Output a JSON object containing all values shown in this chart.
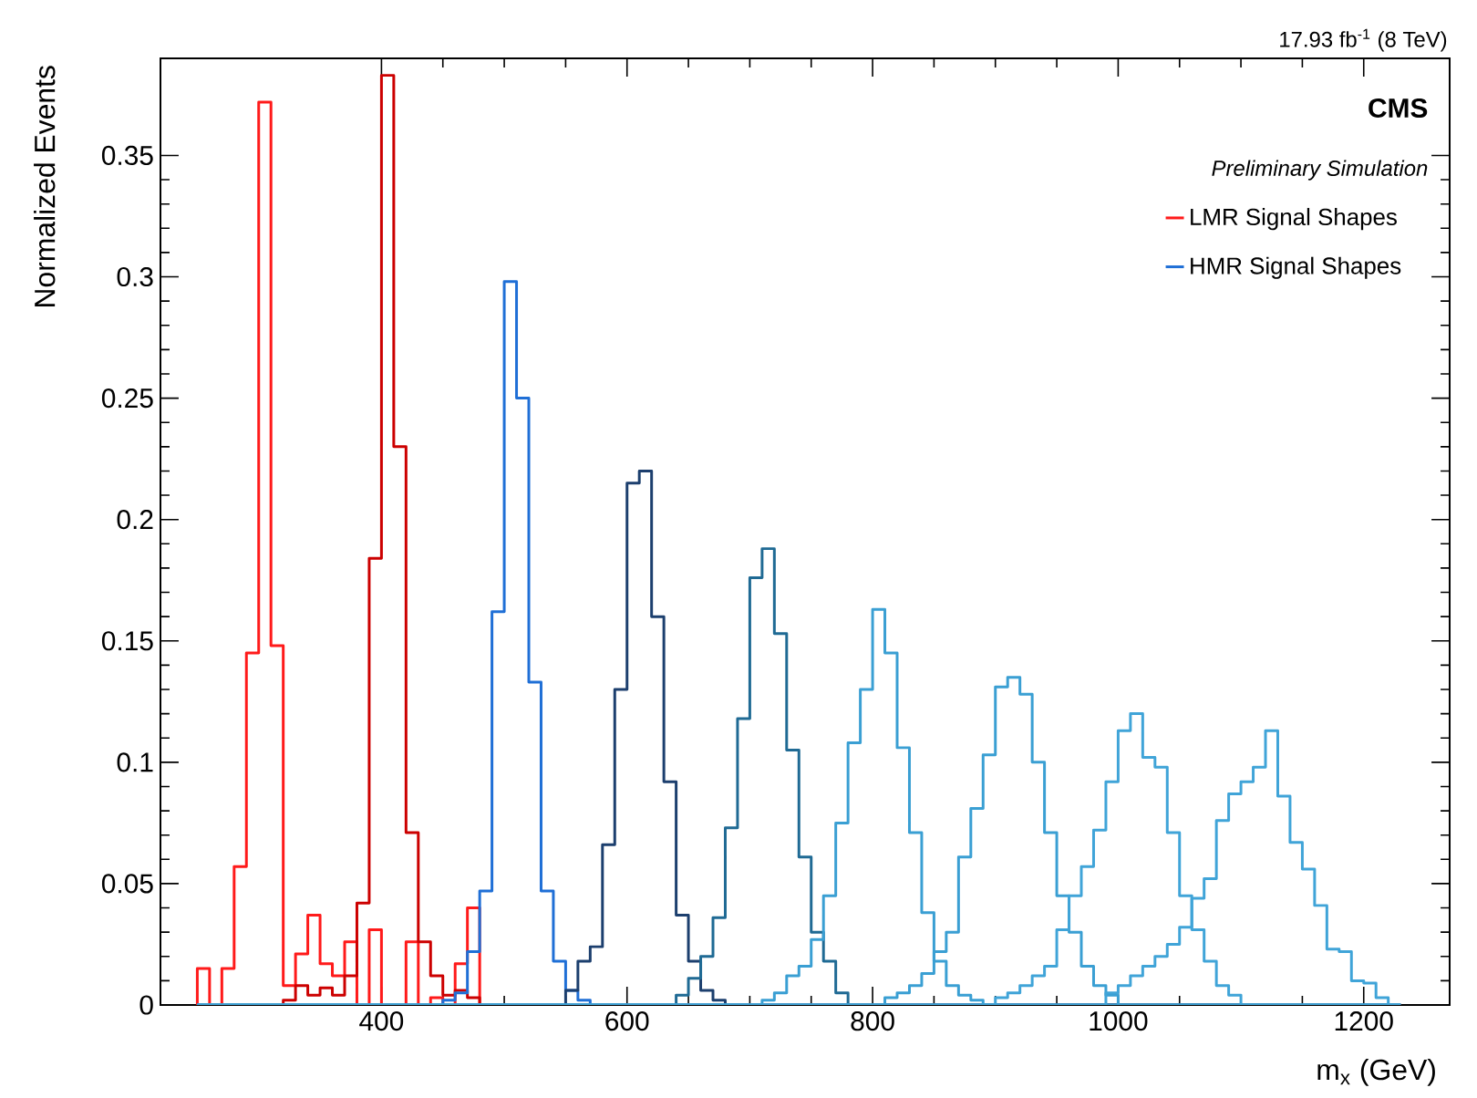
{
  "chart_data": {
    "type": "histogram",
    "title": "17.93 fb$^{-1}$ (8 TeV)",
    "xlabel": "m$_{x}$ (GeV)",
    "ylabel": "Normalized Events",
    "annotations": [
      "CMS",
      "Preliminary Simulation"
    ],
    "xlim": [
      220,
      1270
    ],
    "ylim": [
      0,
      0.39
    ],
    "xticks": [
      400,
      600,
      800,
      1000,
      1200
    ],
    "yticks": [
      0,
      0.05,
      0.1,
      0.15,
      0.2,
      0.25,
      0.3,
      0.35
    ],
    "legend": "top right",
    "bins": [
      250,
      260,
      270,
      280,
      290,
      300,
      310,
      320,
      330,
      340,
      350,
      360,
      370,
      380,
      390,
      400,
      410,
      420,
      430,
      440,
      450,
      460,
      470,
      480,
      490,
      500,
      510,
      520,
      530,
      540,
      550,
      560,
      570,
      580,
      590,
      600,
      610,
      620,
      630,
      640,
      650,
      660,
      670,
      680,
      690,
      700,
      710,
      720,
      730,
      740,
      750,
      760,
      770,
      780,
      790,
      800,
      810,
      820,
      830,
      840,
      850,
      860,
      870,
      880,
      890,
      900,
      910,
      920,
      930,
      940,
      950,
      960,
      970,
      980,
      990,
      1000,
      1010,
      1020,
      1030,
      1040,
      1050,
      1060,
      1070,
      1080,
      1090,
      1100,
      1110,
      1120,
      1130,
      1140,
      1150,
      1160,
      1170,
      1180,
      1190,
      1200,
      1210,
      1220,
      1230
    ],
    "series": [
      {
        "name": "LMR Signal Shapes",
        "color": "#ff1a1a",
        "values": [
          0.015,
          0,
          0.015,
          0.057,
          0.145,
          0.372,
          0.148,
          0.008,
          0.021,
          0.037,
          0.017,
          0.012,
          0.026,
          0,
          0.031,
          0,
          0,
          0.026,
          0,
          0.003,
          0,
          0.017,
          0.04,
          0,
          0,
          0,
          0,
          0,
          0,
          0,
          0,
          0,
          0,
          0,
          0,
          0,
          0,
          0,
          0,
          0,
          0,
          0,
          0,
          0,
          0,
          0,
          0,
          0,
          0,
          0,
          0,
          0,
          0,
          0,
          0,
          0,
          0,
          0,
          0,
          0,
          0,
          0,
          0,
          0,
          0,
          0,
          0,
          0,
          0,
          0,
          0,
          0,
          0,
          0,
          0,
          0,
          0,
          0,
          0,
          0,
          0,
          0,
          0,
          0,
          0,
          0,
          0,
          0,
          0,
          0,
          0,
          0,
          0,
          0,
          0,
          0,
          0,
          0
        ]
      },
      {
        "color": "#cc0000",
        "values": [
          0,
          0,
          0,
          0,
          0,
          0,
          0,
          0.002,
          0.008,
          0.004,
          0.007,
          0.004,
          0.012,
          0.042,
          0.184,
          0.383,
          0.23,
          0.071,
          0.026,
          0.012,
          0.004,
          0.006,
          0.003,
          0,
          0,
          0,
          0,
          0,
          0,
          0,
          0,
          0,
          0,
          0,
          0,
          0,
          0,
          0,
          0,
          0,
          0,
          0,
          0,
          0,
          0,
          0,
          0,
          0,
          0,
          0,
          0,
          0,
          0,
          0,
          0,
          0,
          0,
          0,
          0,
          0,
          0,
          0,
          0,
          0,
          0,
          0,
          0,
          0,
          0,
          0,
          0,
          0,
          0,
          0,
          0,
          0,
          0,
          0,
          0,
          0,
          0,
          0,
          0,
          0,
          0,
          0,
          0,
          0,
          0,
          0,
          0,
          0,
          0,
          0,
          0,
          0,
          0,
          0
        ]
      },
      {
        "name": "HMR Signal Shapes",
        "color": "#1f6fd6",
        "values": [
          0,
          0,
          0,
          0,
          0,
          0,
          0,
          0,
          0,
          0,
          0,
          0,
          0,
          0,
          0,
          0,
          0,
          0,
          0,
          0,
          0.002,
          0.005,
          0.022,
          0.047,
          0.162,
          0.298,
          0.25,
          0.133,
          0.047,
          0.018,
          0.006,
          0.002,
          0,
          0,
          0,
          0,
          0,
          0,
          0,
          0,
          0,
          0,
          0,
          0,
          0,
          0,
          0,
          0,
          0,
          0,
          0,
          0,
          0,
          0,
          0,
          0,
          0,
          0,
          0,
          0,
          0,
          0,
          0,
          0,
          0,
          0,
          0,
          0,
          0,
          0,
          0,
          0,
          0,
          0,
          0,
          0,
          0,
          0,
          0,
          0,
          0,
          0,
          0,
          0,
          0,
          0,
          0,
          0,
          0,
          0,
          0,
          0,
          0,
          0,
          0,
          0,
          0,
          0
        ]
      },
      {
        "color": "#1c3f6e",
        "values": [
          0,
          0,
          0,
          0,
          0,
          0,
          0,
          0,
          0,
          0,
          0,
          0,
          0,
          0,
          0,
          0,
          0,
          0,
          0,
          0,
          0,
          0,
          0,
          0,
          0,
          0,
          0,
          0,
          0,
          0,
          0.006,
          0.018,
          0.024,
          0.066,
          0.13,
          0.215,
          0.22,
          0.16,
          0.092,
          0.037,
          0.018,
          0.006,
          0.002,
          0,
          0,
          0,
          0,
          0,
          0,
          0,
          0,
          0,
          0,
          0,
          0,
          0,
          0,
          0,
          0,
          0,
          0,
          0,
          0,
          0,
          0,
          0,
          0,
          0,
          0,
          0,
          0,
          0,
          0,
          0,
          0,
          0,
          0,
          0,
          0,
          0,
          0,
          0,
          0,
          0,
          0,
          0,
          0,
          0,
          0,
          0,
          0,
          0,
          0,
          0,
          0,
          0,
          0,
          0
        ]
      },
      {
        "color": "#1f6a94",
        "values": [
          0,
          0,
          0,
          0,
          0,
          0,
          0,
          0,
          0,
          0,
          0,
          0,
          0,
          0,
          0,
          0,
          0,
          0,
          0,
          0,
          0,
          0,
          0,
          0,
          0,
          0,
          0,
          0,
          0,
          0,
          0,
          0,
          0,
          0,
          0,
          0,
          0,
          0,
          0,
          0.004,
          0.011,
          0.02,
          0.036,
          0.073,
          0.118,
          0.176,
          0.188,
          0.153,
          0.105,
          0.061,
          0.03,
          0.018,
          0.005,
          0,
          0,
          0,
          0,
          0,
          0,
          0,
          0,
          0,
          0,
          0,
          0,
          0,
          0,
          0,
          0,
          0,
          0,
          0,
          0,
          0,
          0,
          0,
          0,
          0,
          0,
          0,
          0,
          0,
          0,
          0,
          0,
          0,
          0,
          0,
          0,
          0,
          0,
          0,
          0,
          0,
          0,
          0,
          0,
          0
        ]
      },
      {
        "color": "#3a9fd3",
        "values": [
          0,
          0,
          0,
          0,
          0,
          0,
          0,
          0,
          0,
          0,
          0,
          0,
          0,
          0,
          0,
          0,
          0,
          0,
          0,
          0,
          0,
          0,
          0,
          0,
          0,
          0,
          0,
          0,
          0,
          0,
          0,
          0,
          0,
          0,
          0,
          0,
          0,
          0,
          0,
          0,
          0,
          0,
          0,
          0,
          0,
          0,
          0.002,
          0.005,
          0.012,
          0.016,
          0.027,
          0.045,
          0.075,
          0.108,
          0.13,
          0.163,
          0.145,
          0.106,
          0.071,
          0.038,
          0.018,
          0.008,
          0.004,
          0.002,
          0,
          0,
          0,
          0,
          0,
          0,
          0,
          0,
          0,
          0,
          0,
          0,
          0,
          0,
          0,
          0,
          0,
          0,
          0,
          0,
          0,
          0,
          0,
          0,
          0,
          0,
          0,
          0,
          0,
          0,
          0,
          0,
          0,
          0
        ]
      },
      {
        "color": "#3a9fd3",
        "values": [
          0,
          0,
          0,
          0,
          0,
          0,
          0,
          0,
          0,
          0,
          0,
          0,
          0,
          0,
          0,
          0,
          0,
          0,
          0,
          0,
          0,
          0,
          0,
          0,
          0,
          0,
          0,
          0,
          0,
          0,
          0,
          0,
          0,
          0,
          0,
          0,
          0,
          0,
          0,
          0,
          0,
          0,
          0,
          0,
          0,
          0,
          0,
          0,
          0,
          0,
          0,
          0,
          0,
          0,
          0,
          0,
          0.003,
          0.005,
          0.008,
          0.013,
          0.022,
          0.03,
          0.061,
          0.081,
          0.103,
          0.131,
          0.135,
          0.128,
          0.1,
          0.071,
          0.045,
          0.03,
          0.016,
          0.008,
          0.004,
          0,
          0,
          0,
          0,
          0,
          0,
          0,
          0,
          0,
          0,
          0,
          0,
          0,
          0,
          0,
          0,
          0,
          0,
          0,
          0,
          0,
          0,
          0
        ]
      },
      {
        "color": "#40a4d8",
        "values": [
          0,
          0,
          0,
          0,
          0,
          0,
          0,
          0,
          0,
          0,
          0,
          0,
          0,
          0,
          0,
          0,
          0,
          0,
          0,
          0,
          0,
          0,
          0,
          0,
          0,
          0,
          0,
          0,
          0,
          0,
          0,
          0,
          0,
          0,
          0,
          0,
          0,
          0,
          0,
          0,
          0,
          0,
          0,
          0,
          0,
          0,
          0,
          0,
          0,
          0,
          0,
          0,
          0,
          0,
          0,
          0,
          0,
          0,
          0,
          0,
          0,
          0,
          0,
          0,
          0,
          0.003,
          0.005,
          0.008,
          0.012,
          0.016,
          0.031,
          0.045,
          0.057,
          0.072,
          0.092,
          0.113,
          0.12,
          0.102,
          0.098,
          0.071,
          0.045,
          0.031,
          0.018,
          0.008,
          0.004,
          0,
          0,
          0,
          0,
          0,
          0,
          0,
          0,
          0,
          0,
          0,
          0,
          0
        ]
      },
      {
        "color": "#40a4d8",
        "values": [
          0,
          0,
          0,
          0,
          0,
          0,
          0,
          0,
          0,
          0,
          0,
          0,
          0,
          0,
          0,
          0,
          0,
          0,
          0,
          0,
          0,
          0,
          0,
          0,
          0,
          0,
          0,
          0,
          0,
          0,
          0,
          0,
          0,
          0,
          0,
          0,
          0,
          0,
          0,
          0,
          0,
          0,
          0,
          0,
          0,
          0,
          0,
          0,
          0,
          0,
          0,
          0,
          0,
          0,
          0,
          0,
          0,
          0,
          0,
          0,
          0,
          0,
          0,
          0,
          0,
          0,
          0,
          0,
          0,
          0,
          0,
          0,
          0,
          0,
          0.005,
          0.008,
          0.012,
          0.016,
          0.02,
          0.025,
          0.032,
          0.044,
          0.052,
          0.076,
          0.087,
          0.092,
          0.098,
          0.113,
          0.086,
          0.067,
          0.056,
          0.041,
          0.023,
          0.022,
          0.01,
          0.009,
          0.003,
          0
        ]
      }
    ]
  }
}
